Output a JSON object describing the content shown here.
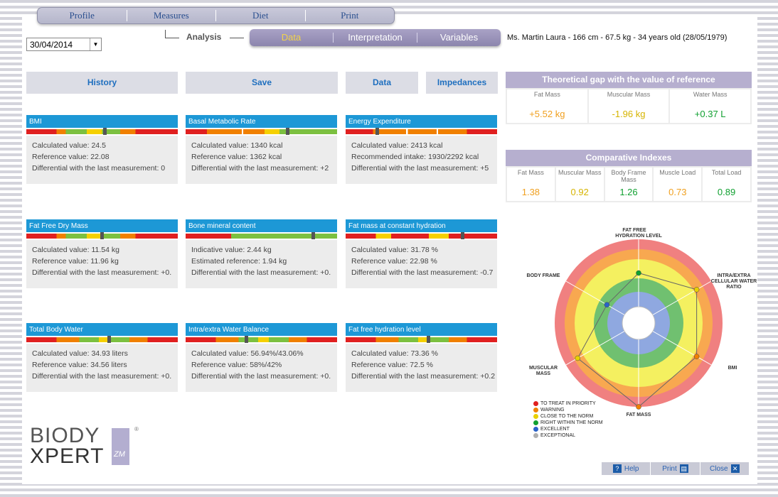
{
  "topmenu": {
    "items": [
      "Profile",
      "Measures",
      "Diet",
      "Print"
    ]
  },
  "analysis_label": "Analysis",
  "submenu": {
    "items": [
      "Data",
      "Interpretation",
      "Variables"
    ],
    "active": "Data"
  },
  "patient_info": "Ms. Martin Laura - 166 cm - 67.5 kg - 34 years old (28/05/1979)",
  "date": "30/04/2014",
  "buttons": {
    "history": "History",
    "save": "Save",
    "data": "Data",
    "impedances": "Impedances"
  },
  "cards": [
    {
      "title": "BMI",
      "l1": "Calculated value: 24.5",
      "l2": "Reference value: 22.08",
      "l3": "Differential with the last measurement: 0",
      "marker": 0.52,
      "colors": "red-green-yellow"
    },
    {
      "title": "Basal Metabolic Rate",
      "l1": "Calculated value: 1340 kcal",
      "l2": "Reference value: 1362 kcal",
      "l3": "Differential with the last measurement: +2",
      "marker": 0.68,
      "colors": "orange-yellow-green"
    },
    {
      "title": "Energy Expenditure",
      "l1": "Calculated value: 2413 kcal",
      "l2": "Recommended intake: 1930/2292 kcal",
      "l3": "Differential with the last measurement: +5",
      "marker": 0.2,
      "colors": "red-orange"
    },
    {
      "title": "Fat Free Dry Mass",
      "l1": "Calculated value: 11.54 kg",
      "l2": "Reference value: 11.96 kg",
      "l3": "Differential with the last measurement: +0.",
      "marker": 0.5,
      "colors": "red-green-yellow"
    },
    {
      "title": "Bone mineral content",
      "l1": "Indicative value: 2.44 kg",
      "l2": "Estimated reference: 1.94 kg",
      "l3": "Differential with the last measurement: +0.",
      "marker": 0.85,
      "colors": "red-green"
    },
    {
      "title": "Fat mass at constant hydration",
      "l1": "Calculated value: 31.78 %",
      "l2": "Reference value: 22.98 %",
      "l3": "Differential with the last measurement: -0.7",
      "marker": 0.78,
      "colors": "red-yellow"
    },
    {
      "title": "Total Body Water",
      "l1": "Calculated value: 34.93 liters",
      "l2": "Reference value: 34.56 liters",
      "l3": "Differential with the last measurement: +0.",
      "marker": 0.55,
      "colors": "orange-green"
    },
    {
      "title": "Intra/extra Water Balance",
      "l1": "Calculated value: 56.94%/43.06%",
      "l2": "Reference value: 58%/42%",
      "l3": "Differential with the last measurement: +0.",
      "marker": 0.4,
      "colors": "orange-green"
    },
    {
      "title": "Fat free hydration level",
      "l1": "Calculated value: 73.36 %",
      "l2": "Reference value: 72.5 %",
      "l3": "Differential with the last measurement: +0.2",
      "marker": 0.55,
      "colors": "orange-green"
    }
  ],
  "gap_panel": {
    "title": "Theoretical gap with the value of reference",
    "items": [
      {
        "label": "Fat Mass",
        "value": "+5.52 kg",
        "color": "#f0a020"
      },
      {
        "label": "Muscular Mass",
        "value": "-1.96 kg",
        "color": "#d6b400"
      },
      {
        "label": "Water Mass",
        "value": "+0.37 L",
        "color": "#10a030"
      }
    ]
  },
  "index_panel": {
    "title": "Comparative Indexes",
    "items": [
      {
        "label": "Fat Mass",
        "value": "1.38",
        "color": "#f0a020"
      },
      {
        "label": "Muscular Mass",
        "value": "0.92",
        "color": "#d6b400"
      },
      {
        "label": "Body Frame Mass",
        "value": "1.26",
        "color": "#10a030"
      },
      {
        "label": "Muscle Load",
        "value": "0.73",
        "color": "#f0a020"
      },
      {
        "label": "Total Load",
        "value": "0.89",
        "color": "#10a030"
      }
    ]
  },
  "radar": {
    "axes": [
      "FAT FREE HYDRATION LEVEL",
      "INTRA/EXTRA CELLULAR WATER RATIO",
      "BMI",
      "FAT MASS",
      "MUSCULAR MASS",
      "BODY FRAME"
    ],
    "levels": [
      0.5,
      0.75,
      0.75,
      1.0,
      0.8,
      0.3
    ],
    "colors": [
      "#10a030",
      "#e8d000",
      "#f08000",
      "#f08000",
      "#e8d000",
      "#2a62c8"
    ]
  },
  "legend": [
    {
      "label": "TO TREAT IN PRIORITY",
      "color": "#e02020"
    },
    {
      "label": "WARNING",
      "color": "#f08000"
    },
    {
      "label": "CLOSE TO THE NORM",
      "color": "#e8d000"
    },
    {
      "label": "RIGHT WITHIN THE NORM",
      "color": "#10a030"
    },
    {
      "label": "EXCELLENT",
      "color": "#2a62c8"
    },
    {
      "label": "EXCEPTIONAL",
      "color": "#b0b0b0"
    }
  ],
  "logo": {
    "line1": "BIODY",
    "line2": "XPERT",
    "tag": "ZM",
    "reg": "®"
  },
  "bottom": {
    "help": "Help",
    "print": "Print",
    "close": "Close"
  }
}
